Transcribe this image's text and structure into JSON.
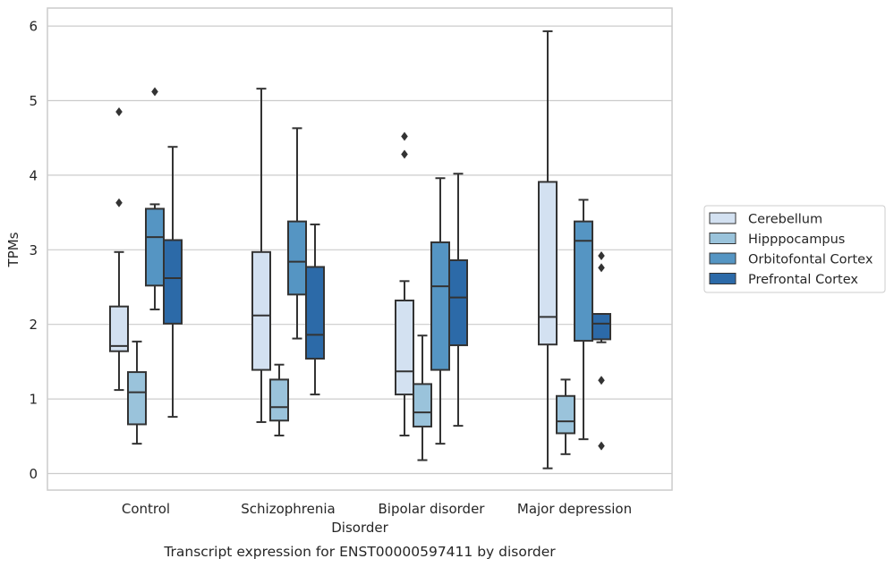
{
  "chart_data": {
    "type": "box",
    "caption": "Transcript expression for ENST00000597411 by disorder",
    "xlabel": "Disorder",
    "ylabel": "TPMs",
    "ylim": [
      -0.2,
      6.2
    ],
    "yticks": [
      0,
      1,
      2,
      3,
      4,
      5,
      6
    ],
    "grid": true,
    "legend_position": "right",
    "categories": [
      "Control",
      "Schizophrenia",
      "Bipolar disorder",
      "Major depression"
    ],
    "series": [
      {
        "name": "Cerebellum",
        "color": "#d3e1f1",
        "boxes": [
          {
            "whisker_low": 1.12,
            "q1": 1.64,
            "median": 1.71,
            "q3": 2.24,
            "whisker_high": 2.97,
            "outliers": [
              3.63,
              4.85
            ]
          },
          {
            "whisker_low": 0.69,
            "q1": 1.39,
            "median": 2.12,
            "q3": 2.97,
            "whisker_high": 5.16,
            "outliers": []
          },
          {
            "whisker_low": 0.51,
            "q1": 1.06,
            "median": 1.37,
            "q3": 2.32,
            "whisker_high": 2.58,
            "outliers": [
              4.28,
              4.52
            ]
          },
          {
            "whisker_low": 0.07,
            "q1": 1.73,
            "median": 2.1,
            "q3": 3.91,
            "whisker_high": 5.93,
            "outliers": []
          }
        ]
      },
      {
        "name": "Hipppocampus",
        "color": "#9ac3db",
        "boxes": [
          {
            "whisker_low": 0.4,
            "q1": 0.66,
            "median": 1.09,
            "q3": 1.36,
            "whisker_high": 1.77,
            "outliers": []
          },
          {
            "whisker_low": 0.51,
            "q1": 0.71,
            "median": 0.89,
            "q3": 1.26,
            "whisker_high": 1.46,
            "outliers": []
          },
          {
            "whisker_low": 0.18,
            "q1": 0.63,
            "median": 0.82,
            "q3": 1.2,
            "whisker_high": 1.85,
            "outliers": []
          },
          {
            "whisker_low": 0.26,
            "q1": 0.54,
            "median": 0.7,
            "q3": 1.04,
            "whisker_high": 1.26,
            "outliers": []
          }
        ]
      },
      {
        "name": "Orbitofontal Cortex",
        "color": "#5595c3",
        "boxes": [
          {
            "whisker_low": 2.2,
            "q1": 2.52,
            "median": 3.17,
            "q3": 3.55,
            "whisker_high": 3.61,
            "outliers": [
              5.12
            ]
          },
          {
            "whisker_low": 1.81,
            "q1": 2.4,
            "median": 2.84,
            "q3": 3.38,
            "whisker_high": 4.63,
            "outliers": []
          },
          {
            "whisker_low": 0.4,
            "q1": 1.39,
            "median": 2.51,
            "q3": 3.1,
            "whisker_high": 3.96,
            "outliers": []
          },
          {
            "whisker_low": 0.46,
            "q1": 1.78,
            "median": 3.12,
            "q3": 3.38,
            "whisker_high": 3.67,
            "outliers": []
          }
        ]
      },
      {
        "name": "Prefrontal Cortex",
        "color": "#2c6aa8",
        "boxes": [
          {
            "whisker_low": 0.76,
            "q1": 2.01,
            "median": 2.62,
            "q3": 3.13,
            "whisker_high": 4.38,
            "outliers": []
          },
          {
            "whisker_low": 1.06,
            "q1": 1.54,
            "median": 1.86,
            "q3": 2.77,
            "whisker_high": 3.34,
            "outliers": []
          },
          {
            "whisker_low": 0.64,
            "q1": 1.72,
            "median": 2.36,
            "q3": 2.86,
            "whisker_high": 4.02,
            "outliers": []
          },
          {
            "whisker_low": 1.76,
            "q1": 1.8,
            "median": 2.01,
            "q3": 2.14,
            "whisker_high": 2.14,
            "outliers": [
              0.37,
              1.25,
              2.76,
              2.92
            ]
          }
        ]
      }
    ]
  }
}
